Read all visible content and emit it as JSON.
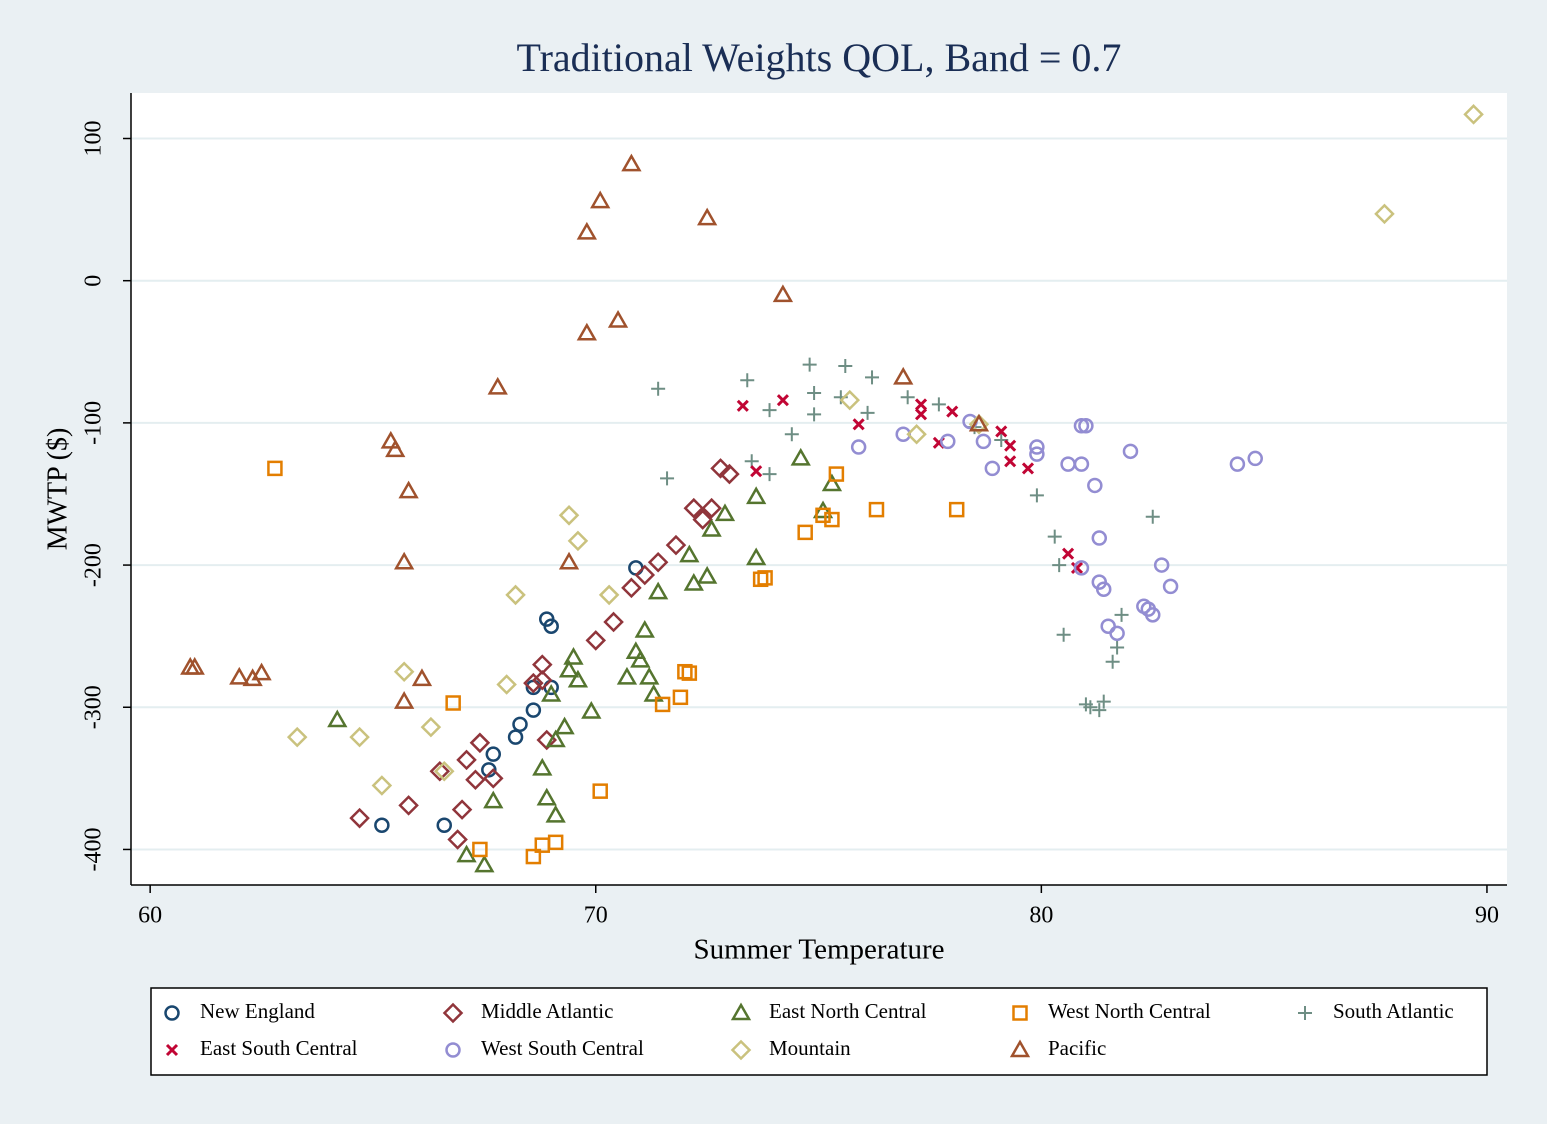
{
  "chart_data": {
    "type": "scatter",
    "title": "Traditional Weights QOL, Band = 0.7",
    "x_label": "Summer Temperature",
    "y_label": "MWTP ($)",
    "xlim": [
      59.57,
      90.45
    ],
    "ylim": [
      -425,
      132
    ],
    "xticks": [
      60,
      70,
      80,
      90
    ],
    "yticks": [
      -400,
      -300,
      -200,
      -100,
      0,
      100
    ],
    "grid": true,
    "legend": "bottom",
    "series": [
      {
        "name": "New England",
        "color": "#1a476f",
        "marker": "circle",
        "x": [
          65.2,
          66.6,
          67.7,
          67.6,
          68.2,
          68.3,
          68.6,
          68.6,
          69.0,
          68.9,
          69.0,
          70.9
        ],
        "values": [
          -383,
          -383,
          -333,
          -344,
          -321,
          -312,
          -302,
          -286,
          -286,
          -238,
          -243,
          -202
        ]
      },
      {
        "name": "Middle Atlantic",
        "color": "#90353b",
        "marker": "diamond",
        "x": [
          64.7,
          65.8,
          66.9,
          67.0,
          66.5,
          67.1,
          67.4,
          67.3,
          67.7,
          68.9,
          68.8,
          68.6,
          68.8,
          70.0,
          70.4,
          70.8,
          71.1,
          71.4,
          71.8,
          72.2,
          72.4,
          72.6,
          72.8,
          73.0
        ],
        "values": [
          -378,
          -369,
          -393,
          -372,
          -345,
          -337,
          -325,
          -351,
          -350,
          -323,
          -281,
          -283,
          -270,
          -253,
          -240,
          -216,
          -207,
          -198,
          -186,
          -160,
          -168,
          -160,
          -132,
          -136
        ]
      },
      {
        "name": "East North Central",
        "color": "#55752f",
        "marker": "triangle",
        "x": [
          64.2,
          67.1,
          67.5,
          67.7,
          68.8,
          68.9,
          69.1,
          69.1,
          69.3,
          69.9,
          70.7,
          70.9,
          71.1,
          71.0,
          71.2,
          71.3,
          71.4,
          72.1,
          72.2,
          72.5,
          72.6,
          72.9,
          73.6,
          73.6,
          74.6,
          75.1,
          75.3,
          69.5,
          69.6,
          69.4,
          69.0
        ],
        "values": [
          -309,
          -404,
          -411,
          -366,
          -343,
          -364,
          -376,
          -323,
          -314,
          -303,
          -279,
          -261,
          -246,
          -267,
          -279,
          -291,
          -219,
          -193,
          -213,
          -208,
          -175,
          -164,
          -152,
          -195,
          -125,
          -162,
          -143,
          -265,
          -281,
          -274,
          -291
        ]
      },
      {
        "name": "West North Central",
        "color": "#e37e00",
        "marker": "square",
        "x": [
          62.8,
          66.8,
          67.4,
          68.6,
          68.8,
          69.1,
          70.1,
          71.5,
          71.9,
          72.0,
          72.1,
          73.7,
          73.8,
          74.7,
          75.1,
          75.3,
          75.4,
          76.3,
          78.1
        ],
        "values": [
          -132,
          -297,
          -400,
          -405,
          -397,
          -395,
          -359,
          -298,
          -293,
          -275,
          -276,
          -210,
          -209,
          -177,
          -165,
          -168,
          -136,
          -161,
          -161
        ]
      },
      {
        "name": "South Atlantic",
        "color": "#6e8e84",
        "marker": "plus",
        "x": [
          71.4,
          71.6,
          73.4,
          73.5,
          73.9,
          73.9,
          74.4,
          74.8,
          74.9,
          74.9,
          75.6,
          75.5,
          76.1,
          76.2,
          77.0,
          77.7,
          79.1,
          79.9,
          80.3,
          80.4,
          80.5,
          81.0,
          81.1,
          81.3,
          81.4,
          81.6,
          81.7,
          81.8,
          82.5,
          78.5
        ],
        "values": [
          -76,
          -139,
          -70,
          -127,
          -91,
          -136,
          -108,
          -59,
          -79,
          -94,
          -60,
          -82,
          -93,
          -68,
          -82,
          -87,
          -112,
          -151,
          -180,
          -200,
          -249,
          -298,
          -300,
          -302,
          -296,
          -268,
          -258,
          -235,
          -166,
          -103
        ]
      },
      {
        "name": "East South Central",
        "color": "#c10534",
        "marker": "cross",
        "x": [
          73.3,
          74.2,
          73.6,
          75.9,
          77.3,
          77.3,
          77.7,
          78.0,
          79.1,
          79.3,
          79.3,
          79.7,
          80.6,
          80.8
        ],
        "values": [
          -88,
          -84,
          -134,
          -101,
          -87,
          -94,
          -114,
          -92,
          -106,
          -116,
          -127,
          -132,
          -192,
          -202
        ]
      },
      {
        "name": "West South Central",
        "color": "#938dd2",
        "marker": "circle",
        "x": [
          75.9,
          76.9,
          77.9,
          78.4,
          78.7,
          78.9,
          79.9,
          79.9,
          80.6,
          80.9,
          80.9,
          81.0,
          81.2,
          81.3,
          80.9,
          81.3,
          81.4,
          81.5,
          81.7,
          82.0,
          82.3,
          82.4,
          82.5,
          82.7,
          82.9,
          84.4,
          84.8
        ],
        "values": [
          -117,
          -108,
          -113,
          -99,
          -113,
          -132,
          -117,
          -122,
          -129,
          -129,
          -102,
          -102,
          -144,
          -181,
          -202,
          -212,
          -217,
          -243,
          -248,
          -120,
          -229,
          -231,
          -235,
          -200,
          -215,
          -129,
          -125
        ]
      },
      {
        "name": "Mountain",
        "color": "#cac27e",
        "marker": "diamond",
        "x": [
          63.3,
          64.7,
          65.2,
          65.7,
          66.3,
          66.6,
          68.0,
          68.2,
          69.4,
          69.6,
          70.3,
          75.7,
          77.2,
          78.6,
          87.7,
          89.7
        ],
        "values": [
          -321,
          -321,
          -355,
          -275,
          -314,
          -345,
          -284,
          -221,
          -165,
          -183,
          -221,
          -84,
          -108,
          -101,
          47,
          117
        ]
      },
      {
        "name": "Pacific",
        "color": "#a0522d",
        "marker": "triangle",
        "x": [
          60.9,
          61.0,
          62.0,
          62.3,
          62.5,
          65.4,
          65.5,
          65.7,
          65.7,
          65.8,
          66.1,
          67.8,
          69.4,
          69.8,
          69.8,
          70.1,
          70.5,
          70.8,
          72.5,
          74.2,
          76.9,
          78.6
        ],
        "values": [
          -272,
          -272,
          -279,
          -280,
          -276,
          -113,
          -119,
          -198,
          -296,
          -148,
          -280,
          -75,
          -198,
          -37,
          34,
          56,
          -28,
          82,
          44,
          -10,
          -68,
          -101
        ]
      }
    ]
  }
}
